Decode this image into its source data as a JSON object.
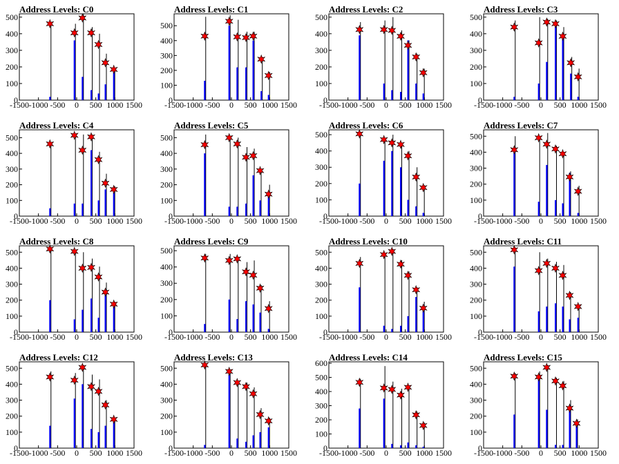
{
  "figure": {
    "background": "#ffffff",
    "spectrum_color": "#0000ff",
    "fine_bar_color": "#000000",
    "marker_fill": "#ff0000",
    "marker_stroke": "#000000"
  },
  "chart_data": [
    {
      "title": "Address Levels: C0",
      "type": "bar",
      "xlim": [
        -1500,
        1500
      ],
      "ylim": [
        0,
        520
      ],
      "xticks": [
        "-1500",
        "-1000",
        "-500",
        "0",
        "500",
        "1000",
        "1500"
      ],
      "yticks": [
        "0",
        "100",
        "200",
        "300",
        "400",
        "500"
      ],
      "peaks": [
        {
          "x": -700,
          "blue": 20,
          "black": 470,
          "marker": 460
        },
        {
          "x": -60,
          "blue": 360,
          "black": 460,
          "marker": 405
        },
        {
          "x": 150,
          "blue": 140,
          "black": 520,
          "marker": 495
        },
        {
          "x": 380,
          "blue": 60,
          "black": 440,
          "marker": 405
        },
        {
          "x": 570,
          "blue": 40,
          "black": 400,
          "marker": 335
        },
        {
          "x": 750,
          "blue": 95,
          "black": 280,
          "marker": 225
        },
        {
          "x": 970,
          "blue": 170,
          "black": 190,
          "marker": 185
        }
      ]
    },
    {
      "title": "Address Levels: C1",
      "type": "bar",
      "xlim": [
        -1500,
        1500
      ],
      "ylim": [
        0,
        580
      ],
      "xticks": [
        "-1500",
        "-1000",
        "-500",
        "0",
        "500",
        "1000",
        "1500"
      ],
      "yticks": [
        "0",
        "100",
        "200",
        "300",
        "400",
        "500"
      ],
      "peaks": [
        {
          "x": -700,
          "blue": 130,
          "black": 560,
          "marker": 430
        },
        {
          "x": -60,
          "blue": 500,
          "black": 570,
          "marker": 530
        },
        {
          "x": 150,
          "blue": 220,
          "black": 540,
          "marker": 425
        },
        {
          "x": 380,
          "blue": 220,
          "black": 460,
          "marker": 420
        },
        {
          "x": 570,
          "blue": 400,
          "black": 460,
          "marker": 430
        },
        {
          "x": 780,
          "blue": 60,
          "black": 290,
          "marker": 275
        },
        {
          "x": 970,
          "blue": 35,
          "black": 190,
          "marker": 165
        }
      ]
    },
    {
      "title": "Address Levels: C2",
      "type": "bar",
      "xlim": [
        -1500,
        1500
      ],
      "ylim": [
        0,
        520
      ],
      "xticks": [
        "-1500",
        "-1000",
        "-500",
        "0",
        "500",
        "1000",
        "1500"
      ],
      "yticks": [
        "0",
        "100",
        "200",
        "300",
        "400",
        "500"
      ],
      "peaks": [
        {
          "x": -700,
          "blue": 390,
          "black": 470,
          "marker": 425
        },
        {
          "x": -60,
          "blue": 100,
          "black": 480,
          "marker": 425
        },
        {
          "x": 150,
          "blue": 60,
          "black": 500,
          "marker": 420
        },
        {
          "x": 380,
          "blue": 50,
          "black": 420,
          "marker": 385
        },
        {
          "x": 570,
          "blue": 360,
          "black": 360,
          "marker": 330
        },
        {
          "x": 780,
          "blue": 100,
          "black": 280,
          "marker": 260
        },
        {
          "x": 970,
          "blue": 40,
          "black": 190,
          "marker": 165
        }
      ]
    },
    {
      "title": "Address Levels: C3",
      "type": "bar",
      "xlim": [
        -1500,
        1500
      ],
      "ylim": [
        0,
        520
      ],
      "xticks": [
        "-1500",
        "-1000",
        "-500",
        "0",
        "500",
        "1000",
        "1500"
      ],
      "yticks": [
        "0",
        "100",
        "200",
        "300",
        "400",
        "500"
      ],
      "peaks": [
        {
          "x": -700,
          "blue": 20,
          "black": 480,
          "marker": 440
        },
        {
          "x": -60,
          "blue": 100,
          "black": 500,
          "marker": 345
        },
        {
          "x": 150,
          "blue": 230,
          "black": 490,
          "marker": 470
        },
        {
          "x": 380,
          "blue": 450,
          "black": 480,
          "marker": 460
        },
        {
          "x": 570,
          "blue": 390,
          "black": 440,
          "marker": 385
        },
        {
          "x": 780,
          "blue": 160,
          "black": 260,
          "marker": 225
        },
        {
          "x": 970,
          "blue": 20,
          "black": 190,
          "marker": 140
        }
      ]
    },
    {
      "title": "Address Levels: C4",
      "type": "bar",
      "xlim": [
        -1500,
        1500
      ],
      "ylim": [
        0,
        550
      ],
      "xticks": [
        "-1500",
        "-1000",
        "-500",
        "0",
        "500",
        "1000",
        "1500"
      ],
      "yticks": [
        "0",
        "100",
        "200",
        "300",
        "400",
        "500"
      ],
      "peaks": [
        {
          "x": -700,
          "blue": 50,
          "black": 470,
          "marker": 460
        },
        {
          "x": -60,
          "blue": 80,
          "black": 520,
          "marker": 515
        },
        {
          "x": 150,
          "blue": 80,
          "black": 520,
          "marker": 420
        },
        {
          "x": 380,
          "blue": 420,
          "black": 520,
          "marker": 505
        },
        {
          "x": 570,
          "blue": 100,
          "black": 410,
          "marker": 360
        },
        {
          "x": 750,
          "blue": 170,
          "black": 270,
          "marker": 210
        },
        {
          "x": 970,
          "blue": 150,
          "black": 190,
          "marker": 170
        }
      ]
    },
    {
      "title": "Address Levels: C5",
      "type": "bar",
      "xlim": [
        -1500,
        1500
      ],
      "ylim": [
        0,
        550
      ],
      "xticks": [
        "-1500",
        "-1000",
        "-500",
        "0",
        "500",
        "1000",
        "1500"
      ],
      "yticks": [
        "0",
        "100",
        "200",
        "300",
        "400",
        "500"
      ],
      "peaks": [
        {
          "x": -700,
          "blue": 400,
          "black": 520,
          "marker": 455
        },
        {
          "x": -60,
          "blue": 60,
          "black": 510,
          "marker": 500
        },
        {
          "x": 150,
          "blue": 60,
          "black": 500,
          "marker": 460
        },
        {
          "x": 380,
          "blue": 80,
          "black": 440,
          "marker": 375
        },
        {
          "x": 570,
          "blue": 260,
          "black": 430,
          "marker": 385
        },
        {
          "x": 750,
          "blue": 100,
          "black": 300,
          "marker": 290
        },
        {
          "x": 970,
          "blue": 140,
          "black": 200,
          "marker": 140
        }
      ]
    },
    {
      "title": "Address Levels: C6",
      "type": "bar",
      "xlim": [
        -1500,
        1500
      ],
      "ylim": [
        0,
        530
      ],
      "xticks": [
        "-1500",
        "-1000",
        "-500",
        "0",
        "500",
        "1000",
        "1500"
      ],
      "yticks": [
        "0",
        "100",
        "200",
        "300",
        "400",
        "500"
      ],
      "peaks": [
        {
          "x": -700,
          "blue": 200,
          "black": 510,
          "marker": 505
        },
        {
          "x": -60,
          "blue": 340,
          "black": 480,
          "marker": 470
        },
        {
          "x": 150,
          "blue": 400,
          "black": 500,
          "marker": 450
        },
        {
          "x": 380,
          "blue": 300,
          "black": 440,
          "marker": 440
        },
        {
          "x": 570,
          "blue": 100,
          "black": 400,
          "marker": 370
        },
        {
          "x": 780,
          "blue": 60,
          "black": 300,
          "marker": 240
        },
        {
          "x": 970,
          "blue": 20,
          "black": 190,
          "marker": 175
        }
      ]
    },
    {
      "title": "Address Levels: C7",
      "type": "bar",
      "xlim": [
        -1500,
        1500
      ],
      "ylim": [
        0,
        540
      ],
      "xticks": [
        "-1500",
        "-1000",
        "-500",
        "0",
        "500",
        "1000",
        "1500"
      ],
      "yticks": [
        "0",
        "100",
        "200",
        "300",
        "400",
        "500"
      ],
      "peaks": [
        {
          "x": -700,
          "blue": 400,
          "black": 500,
          "marker": 415
        },
        {
          "x": -60,
          "blue": 90,
          "black": 500,
          "marker": 490
        },
        {
          "x": 150,
          "blue": 320,
          "black": 520,
          "marker": 450
        },
        {
          "x": 380,
          "blue": 100,
          "black": 440,
          "marker": 420
        },
        {
          "x": 570,
          "blue": 80,
          "black": 400,
          "marker": 390
        },
        {
          "x": 750,
          "blue": 270,
          "black": 280,
          "marker": 245
        },
        {
          "x": 970,
          "blue": 20,
          "black": 190,
          "marker": 155
        }
      ]
    },
    {
      "title": "Address Levels: C8",
      "type": "bar",
      "xlim": [
        -1500,
        1500
      ],
      "ylim": [
        0,
        540
      ],
      "xticks": [
        "-1500",
        "-1000",
        "-500",
        "0",
        "500",
        "1000",
        "1500"
      ],
      "yticks": [
        "0",
        "100",
        "200",
        "300",
        "400",
        "500"
      ],
      "peaks": [
        {
          "x": -700,
          "blue": 200,
          "black": 530,
          "marker": 520
        },
        {
          "x": -60,
          "blue": 80,
          "black": 510,
          "marker": 505
        },
        {
          "x": 150,
          "blue": 140,
          "black": 500,
          "marker": 400
        },
        {
          "x": 380,
          "blue": 210,
          "black": 460,
          "marker": 405
        },
        {
          "x": 570,
          "blue": 90,
          "black": 410,
          "marker": 345
        },
        {
          "x": 750,
          "blue": 250,
          "black": 310,
          "marker": 250
        },
        {
          "x": 970,
          "blue": 160,
          "black": 190,
          "marker": 175
        }
      ]
    },
    {
      "title": "Address Levels: C9",
      "type": "bar",
      "xlim": [
        -1500,
        1500
      ],
      "ylim": [
        0,
        530
      ],
      "xticks": [
        "-1500",
        "-1000",
        "-500",
        "0",
        "500",
        "1000",
        "1500"
      ],
      "yticks": [
        "0",
        "100",
        "200",
        "300",
        "400",
        "500"
      ],
      "peaks": [
        {
          "x": -700,
          "blue": 50,
          "black": 480,
          "marker": 455
        },
        {
          "x": -60,
          "blue": 200,
          "black": 480,
          "marker": 440
        },
        {
          "x": 150,
          "blue": 80,
          "black": 460,
          "marker": 450
        },
        {
          "x": 380,
          "blue": 190,
          "black": 430,
          "marker": 370
        },
        {
          "x": 570,
          "blue": 170,
          "black": 440,
          "marker": 350
        },
        {
          "x": 750,
          "blue": 120,
          "black": 290,
          "marker": 270
        },
        {
          "x": 970,
          "blue": 20,
          "black": 190,
          "marker": 145
        }
      ]
    },
    {
      "title": "Address Levels: C10",
      "type": "bar",
      "xlim": [
        -1500,
        1500
      ],
      "ylim": [
        0,
        540
      ],
      "xticks": [
        "-1500",
        "-1000",
        "-500",
        "0",
        "500",
        "1000",
        "1500"
      ],
      "yticks": [
        "0",
        "100",
        "200",
        "300",
        "400",
        "500"
      ],
      "peaks": [
        {
          "x": -700,
          "blue": 280,
          "black": 470,
          "marker": 430
        },
        {
          "x": -60,
          "blue": 40,
          "black": 490,
          "marker": 485
        },
        {
          "x": 150,
          "blue": 20,
          "black": 520,
          "marker": 505
        },
        {
          "x": 380,
          "blue": 40,
          "black": 450,
          "marker": 425
        },
        {
          "x": 570,
          "blue": 100,
          "black": 380,
          "marker": 355
        },
        {
          "x": 780,
          "blue": 220,
          "black": 280,
          "marker": 265
        },
        {
          "x": 970,
          "blue": 170,
          "black": 190,
          "marker": 150
        }
      ]
    },
    {
      "title": "Address Levels: C11",
      "type": "bar",
      "xlim": [
        -1500,
        1500
      ],
      "ylim": [
        0,
        540
      ],
      "xticks": [
        "-1500",
        "-1000",
        "-500",
        "0",
        "500",
        "1000",
        "1500"
      ],
      "yticks": [
        "0",
        "100",
        "200",
        "300",
        "400",
        "500"
      ],
      "peaks": [
        {
          "x": -700,
          "blue": 410,
          "black": 530,
          "marker": 515
        },
        {
          "x": -60,
          "blue": 130,
          "black": 500,
          "marker": 385
        },
        {
          "x": 150,
          "blue": 160,
          "black": 460,
          "marker": 430
        },
        {
          "x": 380,
          "blue": 180,
          "black": 440,
          "marker": 400
        },
        {
          "x": 570,
          "blue": 160,
          "black": 420,
          "marker": 355
        },
        {
          "x": 750,
          "blue": 80,
          "black": 250,
          "marker": 230
        },
        {
          "x": 970,
          "blue": 90,
          "black": 170,
          "marker": 160
        }
      ]
    },
    {
      "title": "Address Levels: C12",
      "type": "bar",
      "xlim": [
        -1500,
        1500
      ],
      "ylim": [
        0,
        540
      ],
      "xticks": [
        "-1500",
        "-1000",
        "-500",
        "0",
        "500",
        "1000",
        "1500"
      ],
      "yticks": [
        "0",
        "100",
        "200",
        "300",
        "400",
        "500"
      ],
      "peaks": [
        {
          "x": -700,
          "blue": 140,
          "black": 480,
          "marker": 445
        },
        {
          "x": -60,
          "blue": 310,
          "black": 470,
          "marker": 425
        },
        {
          "x": 150,
          "blue": 400,
          "black": 520,
          "marker": 505
        },
        {
          "x": 380,
          "blue": 120,
          "black": 460,
          "marker": 385
        },
        {
          "x": 570,
          "blue": 100,
          "black": 430,
          "marker": 355
        },
        {
          "x": 750,
          "blue": 140,
          "black": 300,
          "marker": 270
        },
        {
          "x": 970,
          "blue": 170,
          "black": 190,
          "marker": 180
        }
      ]
    },
    {
      "title": "Address Levels: C13",
      "type": "bar",
      "xlim": [
        -1500,
        1500
      ],
      "ylim": [
        0,
        540
      ],
      "xticks": [
        "-1500",
        "-1000",
        "-500",
        "0",
        "500",
        "1000",
        "1500"
      ],
      "yticks": [
        "0",
        "100",
        "200",
        "300",
        "400",
        "500"
      ],
      "peaks": [
        {
          "x": -700,
          "blue": 20,
          "black": 530,
          "marker": 520
        },
        {
          "x": -60,
          "blue": 460,
          "black": 490,
          "marker": 480
        },
        {
          "x": 150,
          "blue": 60,
          "black": 420,
          "marker": 410
        },
        {
          "x": 380,
          "blue": 40,
          "black": 410,
          "marker": 385
        },
        {
          "x": 570,
          "blue": 80,
          "black": 380,
          "marker": 340
        },
        {
          "x": 750,
          "blue": 100,
          "black": 250,
          "marker": 210
        },
        {
          "x": 970,
          "blue": 130,
          "black": 190,
          "marker": 170
        }
      ]
    },
    {
      "title": "Address Levels: C14",
      "type": "bar",
      "xlim": [
        -1500,
        1500
      ],
      "ylim": [
        0,
        610
      ],
      "xticks": [
        "-1500",
        "-1000",
        "-500",
        "0",
        "500",
        "1000",
        "1500"
      ],
      "yticks": [
        "0",
        "100",
        "200",
        "300",
        "400",
        "500",
        "600"
      ],
      "peaks": [
        {
          "x": -700,
          "blue": 280,
          "black": 490,
          "marker": 465
        },
        {
          "x": -60,
          "blue": 350,
          "black": 580,
          "marker": 425
        },
        {
          "x": 150,
          "blue": 30,
          "black": 470,
          "marker": 415
        },
        {
          "x": 380,
          "blue": 20,
          "black": 420,
          "marker": 375
        },
        {
          "x": 570,
          "blue": 40,
          "black": 440,
          "marker": 430
        },
        {
          "x": 780,
          "blue": 20,
          "black": 260,
          "marker": 235
        },
        {
          "x": 970,
          "blue": 10,
          "black": 180,
          "marker": 160
        }
      ]
    },
    {
      "title": "Address Levels: C15",
      "type": "bar",
      "xlim": [
        -1500,
        1500
      ],
      "ylim": [
        0,
        540
      ],
      "xticks": [
        "-1500",
        "-1000",
        "-500",
        "0",
        "500",
        "1000",
        "1500"
      ],
      "yticks": [
        "0",
        "100",
        "200",
        "300",
        "400",
        "500"
      ],
      "peaks": [
        {
          "x": -700,
          "blue": 210,
          "black": 470,
          "marker": 450
        },
        {
          "x": -60,
          "blue": 440,
          "black": 480,
          "marker": 445
        },
        {
          "x": 150,
          "blue": 240,
          "black": 520,
          "marker": 505
        },
        {
          "x": 380,
          "blue": 20,
          "black": 440,
          "marker": 420
        },
        {
          "x": 570,
          "blue": 20,
          "black": 420,
          "marker": 390
        },
        {
          "x": 750,
          "blue": 270,
          "black": 300,
          "marker": 250
        },
        {
          "x": 930,
          "blue": 160,
          "black": 180,
          "marker": 155
        }
      ]
    }
  ]
}
